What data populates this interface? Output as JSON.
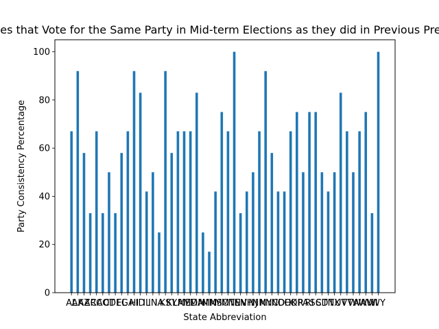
{
  "chart_data": {
    "type": "bar",
    "title": "Percentage of States that Vote for the Same Party in Mid-term Elections as they did in Previous Presidential Elections",
    "xlabel": "State Abbreviation",
    "ylabel": "Party Consistency Percentage",
    "ylim": [
      0,
      105
    ],
    "yticks": [
      0,
      20,
      40,
      60,
      80,
      100
    ],
    "grid": false,
    "bar_color": "#1f77b4",
    "categories": [
      "AL",
      "AK",
      "AZ",
      "AR",
      "CA",
      "CO",
      "CT",
      "DE",
      "FL",
      "GA",
      "HI",
      "ID",
      "IL",
      "IN",
      "IA",
      "KS",
      "KY",
      "LA",
      "ME",
      "MD",
      "MA",
      "MI",
      "MN",
      "MS",
      "MO",
      "MT",
      "NE",
      "NV",
      "NH",
      "NJ",
      "NM",
      "NY",
      "NC",
      "ND",
      "OH",
      "OK",
      "OR",
      "PA",
      "RI",
      "SC",
      "SD",
      "TN",
      "TX",
      "UT",
      "VT",
      "VA",
      "WA",
      "WV",
      "WI",
      "WY"
    ],
    "values": [
      67,
      92,
      58,
      33,
      67,
      33,
      50,
      33,
      58,
      67,
      92,
      83,
      42,
      50,
      25,
      92,
      58,
      67,
      67,
      67,
      83,
      25,
      17,
      42,
      75,
      67,
      100,
      33,
      42,
      50,
      67,
      92,
      58,
      42,
      42,
      67,
      75,
      50,
      75,
      75,
      50,
      42,
      50,
      83,
      67,
      50,
      67,
      75,
      33,
      100
    ]
  }
}
